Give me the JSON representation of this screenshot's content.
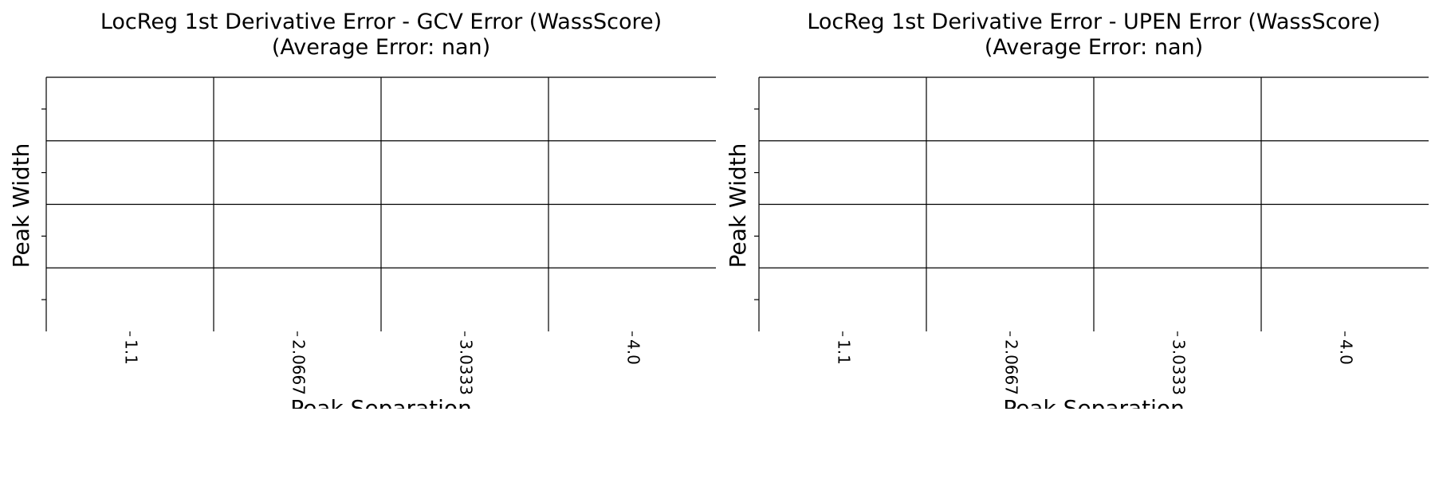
{
  "chart_data": [
    {
      "type": "heatmap",
      "title_line1": "LocReg 1st Derivative Error - GCV Error (WassScore)",
      "title_line2": "(Average Error: nan)",
      "xlabel": "Peak Separation",
      "ylabel": "Peak Width",
      "x_ticks": [
        "1.1",
        "2.0667",
        "3.0333",
        "4.0"
      ],
      "y_ticks": [
        "",
        "",
        "",
        ""
      ],
      "values": [
        [
          null,
          null,
          null,
          null
        ],
        [
          null,
          null,
          null,
          null
        ],
        [
          null,
          null,
          null,
          null
        ],
        [
          null,
          null,
          null,
          null
        ]
      ],
      "grid": true
    },
    {
      "type": "heatmap",
      "title_line1": "LocReg 1st Derivative Error - UPEN Error (WassScore)",
      "title_line2": "(Average Error: nan)",
      "xlabel": "Peak Separation",
      "ylabel": "Peak Width",
      "x_ticks": [
        "1.1",
        "2.0667",
        "3.0333",
        "4.0"
      ],
      "y_ticks": [
        "",
        "",
        "",
        ""
      ],
      "values": [
        [
          null,
          null,
          null,
          null
        ],
        [
          null,
          null,
          null,
          null
        ],
        [
          null,
          null,
          null,
          null
        ],
        [
          null,
          null,
          null,
          null
        ]
      ],
      "grid": true
    }
  ]
}
